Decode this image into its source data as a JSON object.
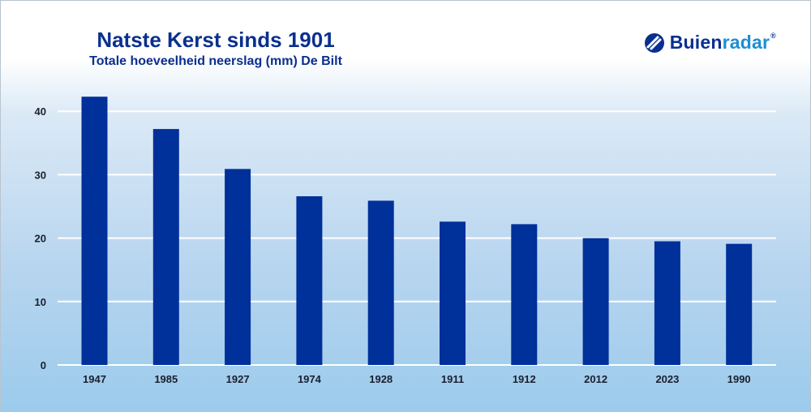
{
  "chart_data": {
    "type": "bar",
    "title": "Natste Kerst sinds 1901",
    "subtitle": "Totale hoeveelheid neerslag (mm) De Bilt",
    "categories": [
      "1947",
      "1985",
      "1927",
      "1974",
      "1928",
      "1911",
      "1912",
      "2012",
      "2023",
      "1990"
    ],
    "values": [
      42.3,
      37.2,
      30.9,
      26.6,
      25.9,
      22.6,
      22.2,
      20.0,
      19.5,
      19.1
    ],
    "ylim": [
      0,
      45
    ],
    "yticks": [
      0,
      10,
      20,
      30,
      40
    ],
    "grid": true,
    "bar_color": "#00309a",
    "grid_color": "#ffffff"
  },
  "logo": {
    "part1": "Buien",
    "part2": "radar",
    "registered": "®",
    "color_dark": "#0a2f8f",
    "color_light": "#1b8ed6"
  }
}
